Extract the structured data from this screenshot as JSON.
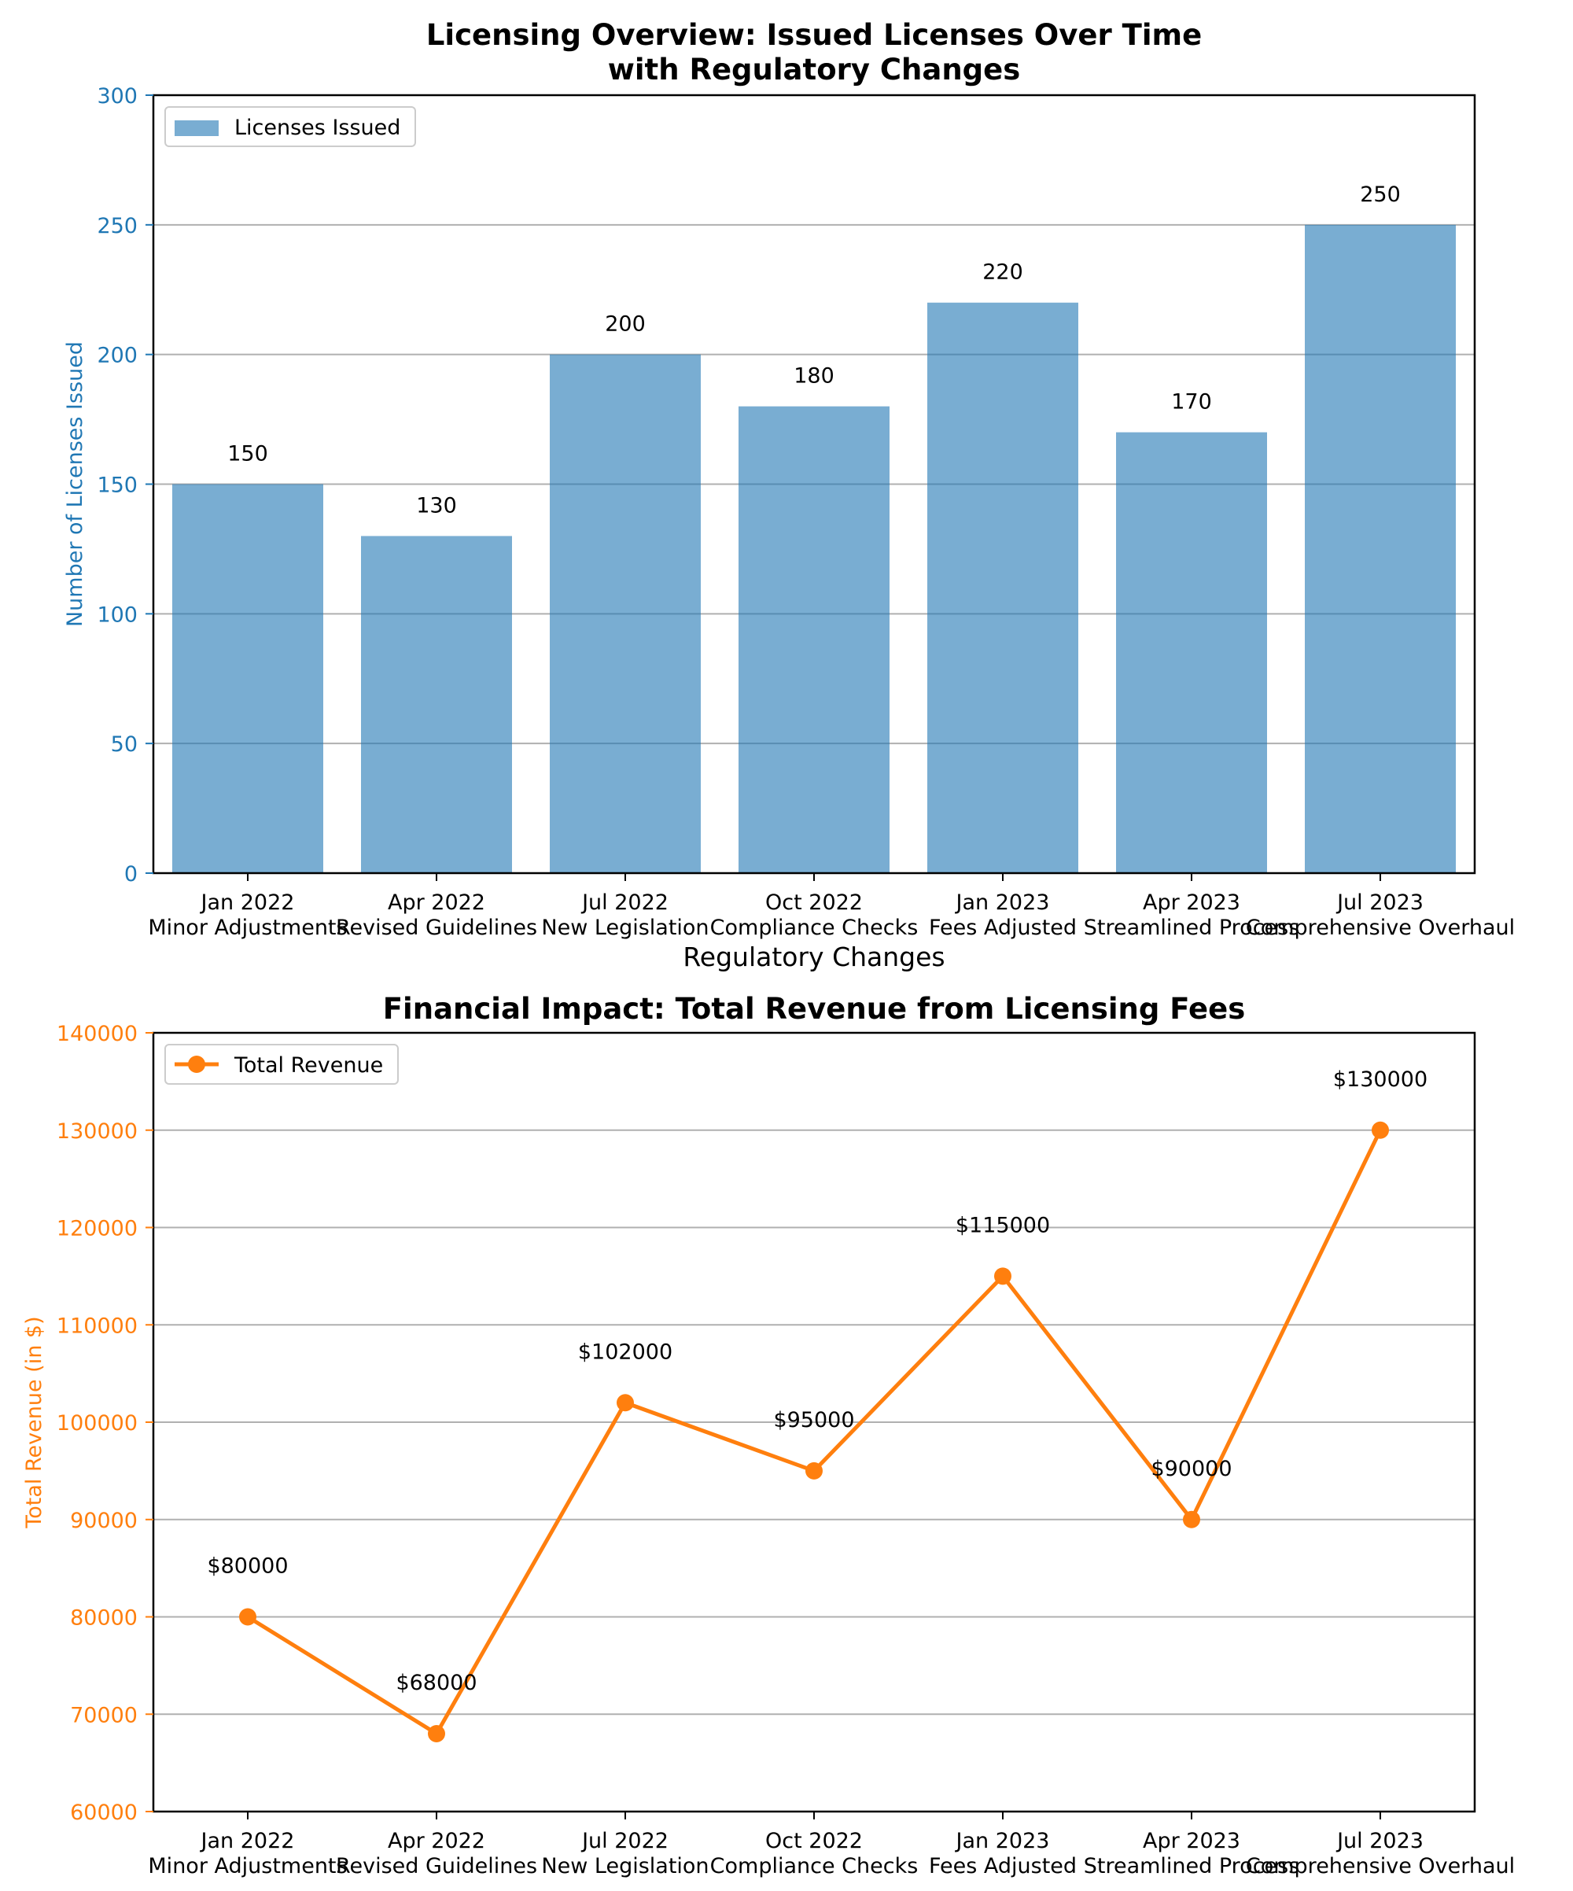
{
  "colors": {
    "bar": "#1f77b4",
    "line": "#ff7f0e",
    "text": "#000000",
    "grid": "#b0b0b0",
    "axis_blue": "#1f77b4",
    "axis_orange": "#ff7f0e"
  },
  "chart_data": [
    {
      "type": "bar",
      "title": "Licensing Overview: Issued Licenses Over Time\nwith Regulatory Changes",
      "xlabel": "Regulatory Changes",
      "ylabel": "Number of Licenses Issued",
      "categories": [
        "Jan 2022\nMinor Adjustments",
        "Apr 2022\nRevised Guidelines",
        "Jul 2022\nNew Legislation",
        "Oct 2022\nCompliance Checks",
        "Jan 2023\nFees Adjusted",
        "Apr 2023\nStreamlined Process",
        "Jul 2023\nComprehensive Overhaul"
      ],
      "series": [
        {
          "name": "Licenses Issued",
          "values": [
            150,
            130,
            200,
            180,
            220,
            170,
            250
          ]
        }
      ],
      "data_labels": [
        "150",
        "130",
        "200",
        "180",
        "220",
        "170",
        "250"
      ],
      "ylim": [
        0,
        300
      ],
      "yticks": [
        0,
        50,
        100,
        150,
        200,
        250,
        300
      ],
      "grid": "y",
      "legend": "upper-left"
    },
    {
      "type": "line",
      "title": "Financial Impact: Total Revenue from Licensing Fees",
      "xlabel": "",
      "ylabel": "Total Revenue (in $)",
      "categories": [
        "Jan 2022\nMinor Adjustments",
        "Apr 2022\nRevised Guidelines",
        "Jul 2022\nNew Legislation",
        "Oct 2022\nCompliance Checks",
        "Jan 2023\nFees Adjusted",
        "Apr 2023\nStreamlined Process",
        "Jul 2023\nComprehensive Overhaul"
      ],
      "series": [
        {
          "name": "Total Revenue",
          "values": [
            80000,
            68000,
            102000,
            95000,
            115000,
            90000,
            130000
          ]
        }
      ],
      "data_labels": [
        "$80000",
        "$68000",
        "$102000",
        "$95000",
        "$115000",
        "$90000",
        "$130000"
      ],
      "ylim": [
        60000,
        140000
      ],
      "yticks": [
        60000,
        70000,
        80000,
        90000,
        100000,
        110000,
        120000,
        130000,
        140000
      ],
      "grid": "y",
      "legend": "upper-left"
    }
  ]
}
